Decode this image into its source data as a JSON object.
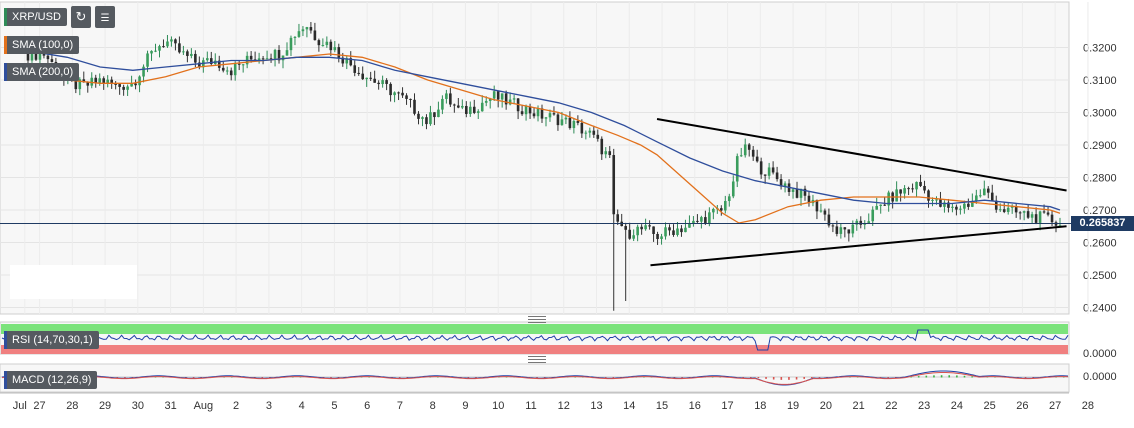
{
  "header": {
    "symbol": "XRP/USD",
    "refresh_icon": "refresh-icon",
    "indicators_icon": "indicators-icon"
  },
  "legend": {
    "sma100": "SMA (100,0)",
    "sma200": "SMA (200,0)",
    "sma100_color": "#e2711c",
    "sma200_color": "#2f4e9c"
  },
  "rsi_label": "RSI (14,70,30,1)",
  "macd_label": "MACD (12,26,9)",
  "current_price": "0.265837",
  "chart_data": {
    "type": "candlestick",
    "price_ylim": [
      0.238,
      0.334
    ],
    "price_ticks": [
      "0.3200",
      "0.3100",
      "0.3000",
      "0.2900",
      "0.2800",
      "0.2700",
      "0.2600",
      "0.2500",
      "0.2400"
    ],
    "x_tick_labels": [
      "Jul",
      "27",
      "28",
      "29",
      "30",
      "31",
      "Aug",
      "2",
      "3",
      "4",
      "5",
      "6",
      "7",
      "8",
      "9",
      "10",
      "11",
      "12",
      "13",
      "14",
      "15",
      "16",
      "17",
      "18",
      "19",
      "20",
      "21",
      "22",
      "23",
      "24",
      "25",
      "26",
      "27",
      "28"
    ],
    "anchors": [
      [
        26.8,
        0.318
      ],
      [
        27.3,
        0.318
      ],
      [
        28.0,
        0.309
      ],
      [
        28.5,
        0.308
      ],
      [
        29.0,
        0.31
      ],
      [
        29.5,
        0.308
      ],
      [
        30.0,
        0.309
      ],
      [
        30.3,
        0.314
      ],
      [
        30.7,
        0.32
      ],
      [
        31.0,
        0.322
      ],
      [
        31.5,
        0.318
      ],
      [
        32.0,
        0.315
      ],
      [
        32.5,
        0.316
      ],
      [
        33.0,
        0.313
      ],
      [
        33.5,
        0.316
      ],
      [
        34.0,
        0.318
      ],
      [
        34.5,
        0.318
      ],
      [
        35.0,
        0.325
      ],
      [
        35.3,
        0.327
      ],
      [
        35.6,
        0.323
      ],
      [
        36.0,
        0.321
      ],
      [
        36.5,
        0.316
      ],
      [
        37.0,
        0.312
      ],
      [
        37.5,
        0.309
      ],
      [
        38.0,
        0.306
      ],
      [
        38.5,
        0.302
      ],
      [
        39.0,
        0.297
      ],
      [
        39.5,
        0.305
      ],
      [
        40.0,
        0.3
      ],
      [
        40.5,
        0.302
      ],
      [
        41.0,
        0.305
      ],
      [
        41.5,
        0.303
      ],
      [
        42.0,
        0.301
      ],
      [
        42.5,
        0.299
      ],
      [
        43.0,
        0.298
      ],
      [
        43.5,
        0.296
      ],
      [
        44.0,
        0.293
      ],
      [
        44.6,
        0.285
      ],
      [
        44.7,
        0.262
      ],
      [
        44.85,
        0.268
      ],
      [
        45.0,
        0.262
      ],
      [
        45.3,
        0.264
      ],
      [
        45.6,
        0.264
      ],
      [
        46.0,
        0.262
      ],
      [
        46.5,
        0.264
      ],
      [
        47.0,
        0.265
      ],
      [
        47.5,
        0.268
      ],
      [
        48.0,
        0.27
      ],
      [
        48.3,
        0.278
      ],
      [
        48.5,
        0.287
      ],
      [
        48.8,
        0.289
      ],
      [
        49.0,
        0.284
      ],
      [
        49.5,
        0.281
      ],
      [
        50.0,
        0.277
      ],
      [
        50.5,
        0.274
      ],
      [
        51.0,
        0.27
      ],
      [
        51.5,
        0.263
      ],
      [
        52.0,
        0.264
      ],
      [
        52.5,
        0.268
      ],
      [
        53.0,
        0.273
      ],
      [
        53.5,
        0.276
      ],
      [
        54.0,
        0.278
      ],
      [
        54.5,
        0.272
      ],
      [
        55.0,
        0.27
      ],
      [
        55.5,
        0.272
      ],
      [
        56.0,
        0.276
      ],
      [
        56.3,
        0.272
      ],
      [
        56.6,
        0.27
      ],
      [
        57.0,
        0.269
      ],
      [
        57.5,
        0.268
      ],
      [
        58.0,
        0.267
      ],
      [
        58.3,
        0.266
      ]
    ],
    "sma100": [
      [
        26.8,
        0.313
      ],
      [
        28.0,
        0.31
      ],
      [
        29.0,
        0.309
      ],
      [
        30.0,
        0.309
      ],
      [
        31.0,
        0.311
      ],
      [
        32.0,
        0.314
      ],
      [
        33.0,
        0.315
      ],
      [
        34.0,
        0.316
      ],
      [
        35.0,
        0.317
      ],
      [
        36.0,
        0.318
      ],
      [
        37.0,
        0.317
      ],
      [
        38.0,
        0.314
      ],
      [
        39.0,
        0.31
      ],
      [
        40.0,
        0.307
      ],
      [
        41.0,
        0.304
      ],
      [
        42.0,
        0.302
      ],
      [
        43.0,
        0.3
      ],
      [
        44.0,
        0.296
      ],
      [
        44.8,
        0.293
      ],
      [
        45.5,
        0.29
      ],
      [
        46.0,
        0.287
      ],
      [
        47.0,
        0.278
      ],
      [
        48.0,
        0.269
      ],
      [
        48.5,
        0.266
      ],
      [
        49.0,
        0.267
      ],
      [
        50.0,
        0.271
      ],
      [
        51.0,
        0.273
      ],
      [
        52.0,
        0.274
      ],
      [
        53.0,
        0.274
      ],
      [
        54.0,
        0.274
      ],
      [
        55.0,
        0.273
      ],
      [
        56.0,
        0.272
      ],
      [
        57.0,
        0.271
      ],
      [
        58.0,
        0.27
      ],
      [
        58.3,
        0.269
      ]
    ],
    "sma200": [
      [
        26.8,
        0.319
      ],
      [
        28.0,
        0.317
      ],
      [
        29.0,
        0.314
      ],
      [
        30.0,
        0.313
      ],
      [
        31.0,
        0.314
      ],
      [
        32.0,
        0.315
      ],
      [
        33.0,
        0.316
      ],
      [
        34.0,
        0.316
      ],
      [
        35.0,
        0.317
      ],
      [
        36.0,
        0.317
      ],
      [
        37.0,
        0.316
      ],
      [
        38.0,
        0.313
      ],
      [
        39.0,
        0.311
      ],
      [
        40.0,
        0.309
      ],
      [
        41.0,
        0.307
      ],
      [
        42.0,
        0.305
      ],
      [
        43.0,
        0.303
      ],
      [
        44.0,
        0.3
      ],
      [
        45.0,
        0.296
      ],
      [
        46.0,
        0.291
      ],
      [
        47.0,
        0.286
      ],
      [
        48.0,
        0.282
      ],
      [
        49.0,
        0.279
      ],
      [
        50.0,
        0.277
      ],
      [
        51.0,
        0.275
      ],
      [
        52.0,
        0.273
      ],
      [
        53.0,
        0.272
      ],
      [
        54.0,
        0.272
      ],
      [
        55.0,
        0.272
      ],
      [
        56.0,
        0.273
      ],
      [
        57.0,
        0.272
      ],
      [
        58.0,
        0.271
      ],
      [
        58.3,
        0.27
      ]
    ],
    "trendlines": [
      {
        "from": [
          46.0,
          0.298
        ],
        "to": [
          58.5,
          0.276
        ]
      },
      {
        "from": [
          45.8,
          0.253
        ],
        "to": [
          58.5,
          0.265
        ]
      }
    ],
    "rsi_ylim": [
      0,
      100
    ],
    "rsi_tick": "0.0000",
    "macd_tick": "0.0000",
    "bull_color": "#2e8b57",
    "bear_color": "#333333"
  }
}
